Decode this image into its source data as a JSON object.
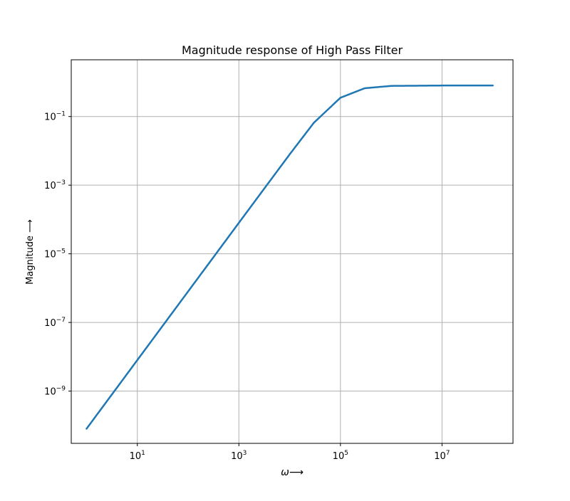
{
  "chart_data": {
    "type": "line",
    "title": "Magnitude response of High Pass Filter",
    "xlabel": "ω⟶",
    "ylabel": "Magnitude  ⟶",
    "xscale": "log",
    "yscale": "log",
    "xlim": [
      0.5,
      250000000
    ],
    "ylim": [
      3e-11,
      4.5
    ],
    "grid": true,
    "x_ticks": [
      {
        "value": 10,
        "base": "10",
        "exp": "1"
      },
      {
        "value": 1000,
        "base": "10",
        "exp": "3"
      },
      {
        "value": 100000,
        "base": "10",
        "exp": "5"
      },
      {
        "value": 10000000,
        "base": "10",
        "exp": "7"
      }
    ],
    "y_ticks": [
      {
        "value": 1e-09,
        "base": "10",
        "exp": "−9"
      },
      {
        "value": 1e-07,
        "base": "10",
        "exp": "−7"
      },
      {
        "value": 1e-05,
        "base": "10",
        "exp": "−5"
      },
      {
        "value": 0.001,
        "base": "10",
        "exp": "−3"
      },
      {
        "value": 0.1,
        "base": "10",
        "exp": "−1"
      }
    ],
    "series": [
      {
        "color": "#1f77b4",
        "x": [
          1,
          10,
          100,
          1000,
          10000,
          30000,
          100000,
          300000,
          1000000,
          10000000,
          100000000
        ],
        "y": [
          8e-11,
          8e-09,
          8e-07,
          8e-05,
          0.0079,
          0.066,
          0.353,
          0.667,
          0.78,
          0.8,
          0.8
        ]
      }
    ]
  }
}
